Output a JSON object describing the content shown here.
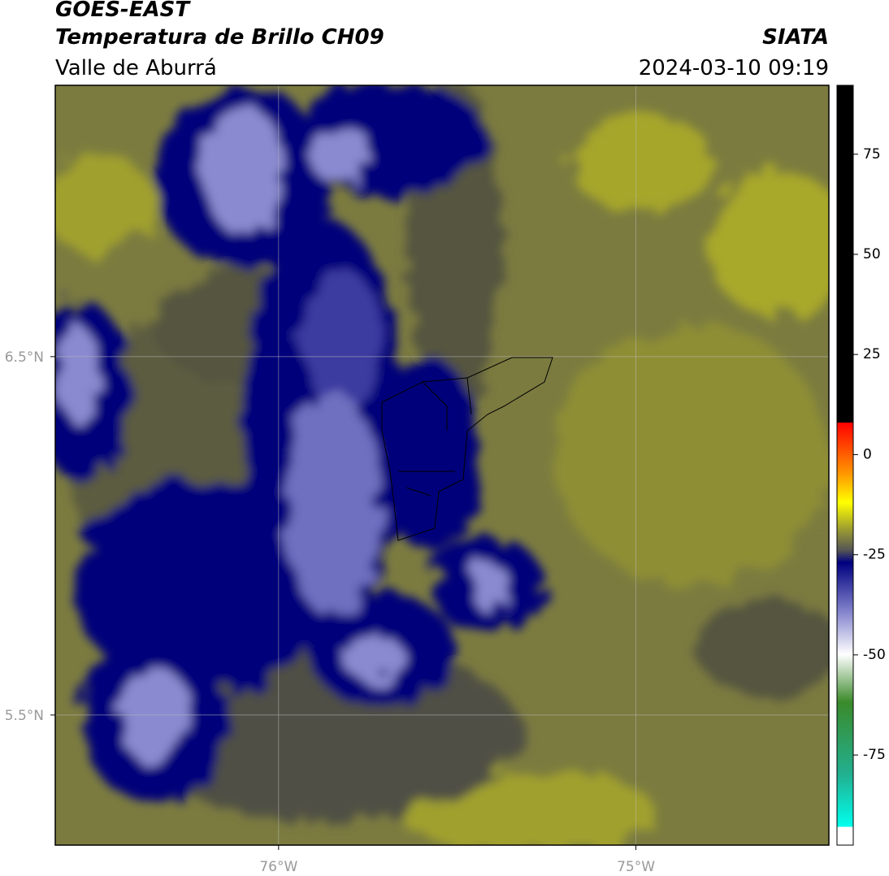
{
  "header": {
    "title": "GOES-EAST",
    "subtitle": "Temperatura de Brillo CH09",
    "region": "Valle de Aburrá",
    "source": "SIATA",
    "timestamp": "2024-03-10 09:19"
  },
  "map": {
    "lonlim": [
      -76.625,
      -74.46
    ],
    "latlim": [
      5.137,
      7.257
    ],
    "lonticks": [
      {
        "value": -76,
        "label": "76°W"
      },
      {
        "value": -75,
        "label": "75°W"
      }
    ],
    "latticks": [
      {
        "value": 6.5,
        "label": "6.5°N"
      },
      {
        "value": 5.5,
        "label": "5.5°N"
      }
    ],
    "grid": true
  },
  "colorbar": {
    "lim": [
      -97.5,
      92.2
    ],
    "ticks": [
      75,
      50,
      25,
      0,
      -25,
      -50,
      -75
    ]
  }
}
